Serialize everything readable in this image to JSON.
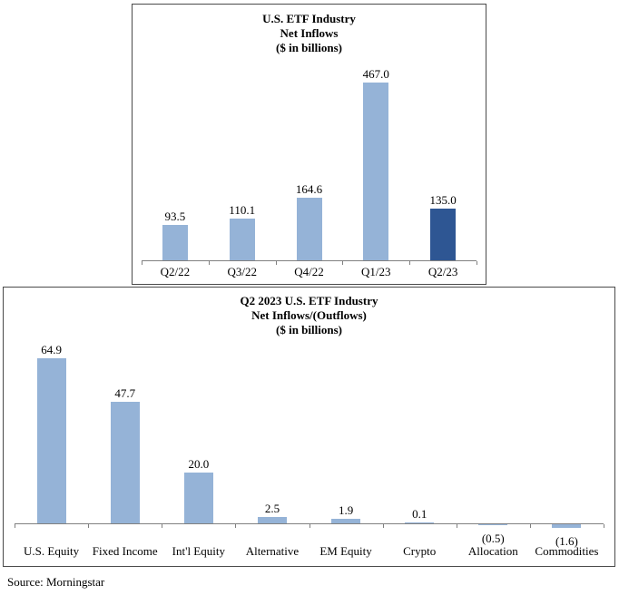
{
  "source": "Source: Morningstar",
  "colors": {
    "bar_light": "#95B3D7",
    "bar_dark": "#2E5693",
    "axis": "#808080",
    "box_border": "#4a4a4a"
  },
  "chart_data": [
    {
      "type": "bar",
      "title_lines": [
        "U.S. ETF Industry",
        "Net Inflows",
        "($ in billions)"
      ],
      "categories": [
        "Q2/22",
        "Q3/22",
        "Q4/22",
        "Q1/23",
        "Q2/23"
      ],
      "values": [
        93.5,
        110.1,
        164.6,
        467.0,
        135.0
      ],
      "value_labels": [
        "93.5",
        "110.1",
        "164.6",
        "467.0",
        "135.0"
      ],
      "highlight_last": true,
      "ylim": [
        0,
        500
      ],
      "grid": false,
      "legend": "none"
    },
    {
      "type": "bar",
      "title_lines": [
        "Q2 2023 U.S. ETF Industry",
        "Net Inflows/(Outflows)",
        "($ in billions)"
      ],
      "categories": [
        "U.S. Equity",
        "Fixed Income",
        "Int'l Equity",
        "Alternative",
        "EM Equity",
        "Crypto",
        "Allocation",
        "Commodities"
      ],
      "values": [
        64.9,
        47.7,
        20.0,
        2.5,
        1.9,
        0.1,
        -0.5,
        -1.6
      ],
      "value_labels": [
        "64.9",
        "47.7",
        "20.0",
        "2.5",
        "1.9",
        "0.1",
        "(0.5)",
        "(1.6)"
      ],
      "highlight_last": false,
      "ylim": [
        -5,
        70
      ],
      "grid": false,
      "legend": "none"
    }
  ]
}
